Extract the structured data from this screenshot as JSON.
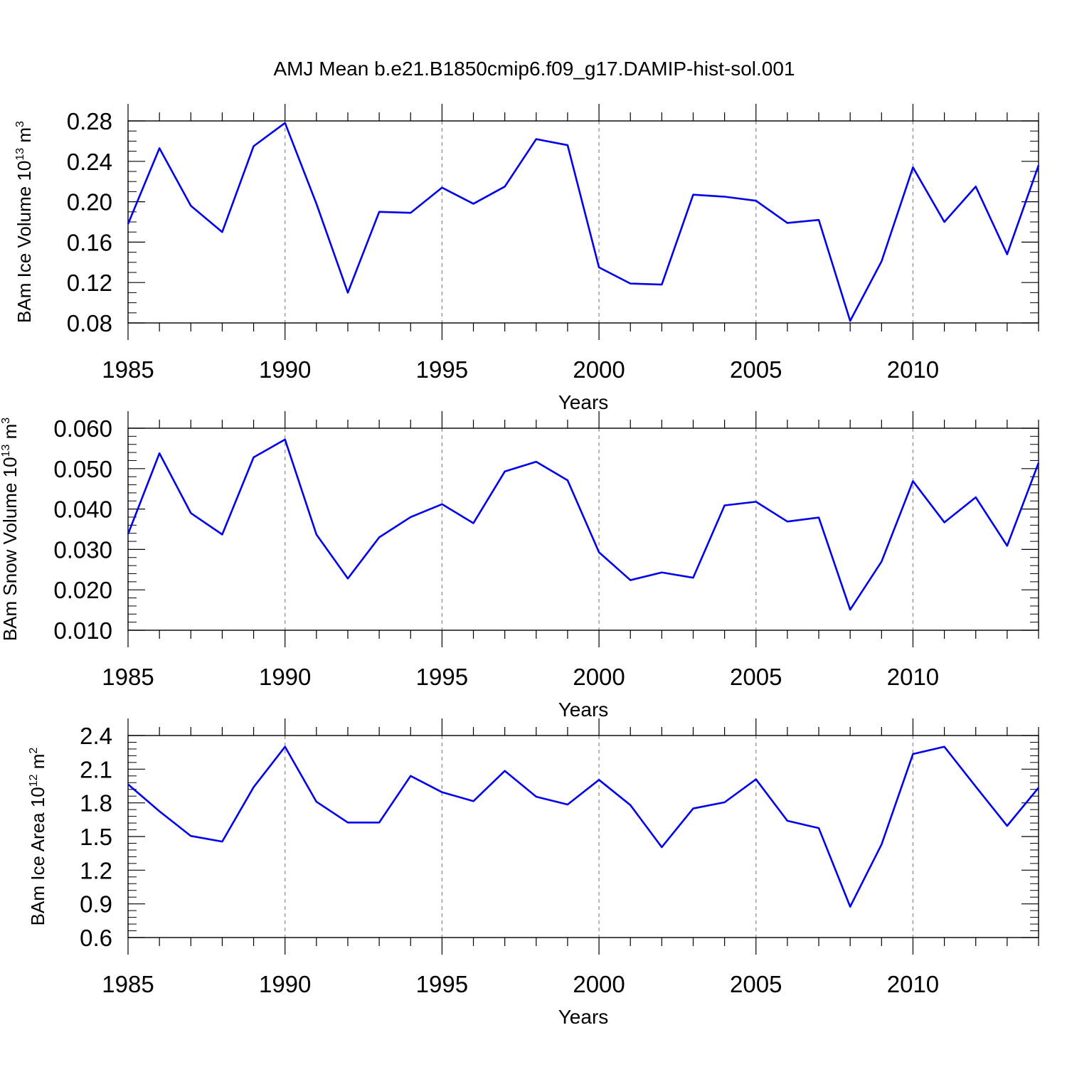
{
  "figure_title": "AMJ Mean b.e21.B1850cmip6.f09_g17.DAMIP-hist-sol.001",
  "chart_data": [
    {
      "type": "line",
      "title": "AMJ Mean b.e21.B1850cmip6.f09_g17.DAMIP-hist-sol.001",
      "ylabel_main": "BAm Ice Volume 10",
      "ylabel_exp": "13",
      "ylabel_unit": " m",
      "ylabel_unit_exp": "3",
      "xlabel": "Years",
      "xlim": [
        1985,
        2014
      ],
      "ylim": [
        0.08,
        0.28
      ],
      "y_major_ticks": [
        0.08,
        0.12,
        0.16,
        0.2,
        0.24,
        0.28
      ],
      "y_tick_labels": [
        "0.08",
        "0.12",
        "0.16",
        "0.20",
        "0.24",
        "0.28"
      ],
      "y_minor_step": 0.01,
      "x_major_ticks": [
        1985,
        1990,
        1995,
        2000,
        2005,
        2010
      ],
      "x_tick_labels": [
        "1985",
        "1990",
        "1995",
        "2000",
        "2005",
        "2010"
      ],
      "line_color": "#0000ee",
      "series": [
        {
          "name": "BAm Ice Volume",
          "x": [
            1985,
            1986,
            1987,
            1988,
            1989,
            1990,
            1991,
            1992,
            1993,
            1994,
            1995,
            1996,
            1997,
            1998,
            1999,
            2000,
            2001,
            2002,
            2003,
            2004,
            2005,
            2006,
            2007,
            2008,
            2009,
            2010,
            2011,
            2012,
            2013,
            2014
          ],
          "values": [
            0.178,
            0.253,
            0.196,
            0.17,
            0.255,
            0.278,
            0.198,
            0.11,
            0.19,
            0.189,
            0.214,
            0.198,
            0.215,
            0.262,
            0.256,
            0.135,
            0.119,
            0.118,
            0.207,
            0.205,
            0.201,
            0.179,
            0.182,
            0.082,
            0.141,
            0.234,
            0.18,
            0.215,
            0.148,
            0.236
          ]
        }
      ]
    },
    {
      "type": "line",
      "ylabel_main": "BAm Snow Volume 10",
      "ylabel_exp": "13",
      "ylabel_unit": " m",
      "ylabel_unit_exp": "3",
      "xlabel": "Years",
      "xlim": [
        1985,
        2014
      ],
      "ylim": [
        0.01,
        0.06
      ],
      "y_major_ticks": [
        0.01,
        0.02,
        0.03,
        0.04,
        0.05,
        0.06
      ],
      "y_tick_labels": [
        "0.010",
        "0.020",
        "0.030",
        "0.040",
        "0.050",
        "0.060"
      ],
      "y_minor_step": 0.002,
      "x_major_ticks": [
        1985,
        1990,
        1995,
        2000,
        2005,
        2010
      ],
      "x_tick_labels": [
        "1985",
        "1990",
        "1995",
        "2000",
        "2005",
        "2010"
      ],
      "line_color": "#0000ee",
      "series": [
        {
          "name": "BAm Snow Volume",
          "x": [
            1985,
            1986,
            1987,
            1988,
            1989,
            1990,
            1991,
            1992,
            1993,
            1994,
            1995,
            1996,
            1997,
            1998,
            1999,
            2000,
            2001,
            2002,
            2003,
            2004,
            2005,
            2006,
            2007,
            2008,
            2009,
            2010,
            2011,
            2012,
            2013,
            2014
          ],
          "values": [
            0.0338,
            0.0538,
            0.039,
            0.0337,
            0.0528,
            0.0572,
            0.0337,
            0.0228,
            0.033,
            0.038,
            0.0412,
            0.0365,
            0.0493,
            0.0517,
            0.0471,
            0.0293,
            0.0224,
            0.0243,
            0.023,
            0.0409,
            0.0418,
            0.0369,
            0.0379,
            0.0151,
            0.027,
            0.0469,
            0.0367,
            0.0429,
            0.0309,
            0.0514
          ]
        }
      ]
    },
    {
      "type": "line",
      "ylabel_main": "BAm Ice Area 10",
      "ylabel_exp": "12",
      "ylabel_unit": " m",
      "ylabel_unit_exp": "2",
      "xlabel": "Years",
      "xlim": [
        1985,
        2014
      ],
      "ylim": [
        0.6,
        2.4
      ],
      "y_major_ticks": [
        0.6,
        0.9,
        1.2,
        1.5,
        1.8,
        2.1,
        2.4
      ],
      "y_tick_labels": [
        "0.6",
        "0.9",
        "1.2",
        "1.5",
        "1.8",
        "2.1",
        "2.4"
      ],
      "y_minor_step": 0.06,
      "x_major_ticks": [
        1985,
        1990,
        1995,
        2000,
        2005,
        2010
      ],
      "x_tick_labels": [
        "1985",
        "1990",
        "1995",
        "2000",
        "2005",
        "2010"
      ],
      "line_color": "#0000ee",
      "series": [
        {
          "name": "BAm Ice Area",
          "x": [
            1985,
            1986,
            1987,
            1988,
            1989,
            1990,
            1991,
            1992,
            1993,
            1994,
            1995,
            1996,
            1997,
            1998,
            1999,
            2000,
            2001,
            2002,
            2003,
            2004,
            2005,
            2006,
            2007,
            2008,
            2009,
            2010,
            2011,
            2012,
            2013,
            2014
          ],
          "values": [
            1.965,
            1.725,
            1.505,
            1.455,
            1.94,
            2.3,
            1.81,
            1.625,
            1.625,
            2.04,
            1.895,
            1.815,
            2.085,
            1.855,
            1.785,
            2.005,
            1.78,
            1.405,
            1.75,
            1.805,
            2.01,
            1.64,
            1.575,
            0.875,
            1.43,
            2.235,
            2.3,
            1.945,
            1.595,
            1.935
          ]
        }
      ]
    }
  ]
}
